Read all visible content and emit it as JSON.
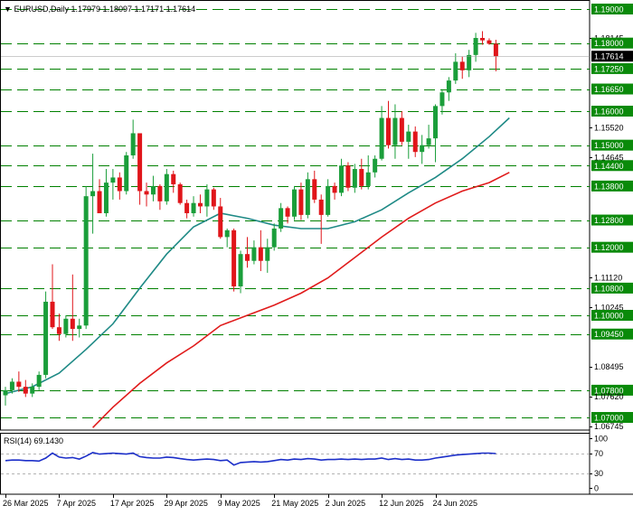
{
  "header": {
    "menu_arrow": "▼",
    "symbol": "EURUSD,Daily",
    "ohlc": "1.17979 1.18097 1.17171 1.17614"
  },
  "rsi_header": "RSI(14) 69.1430",
  "colors": {
    "bull": "#1a9e3a",
    "bear": "#e0151a",
    "level_line": "#008000",
    "level_tag": "#0a8a0a",
    "ma_fast": "#1f8a86",
    "ma_slow": "#e01b1b",
    "rsi_line": "#1c2fc9",
    "price_tag": "#000000"
  },
  "chart_data": [
    {
      "type": "candlestick",
      "title": "EURUSD,Daily",
      "ylim": [
        1.067,
        1.1935
      ],
      "y_ticks": [
        "1.19000",
        "1.18145",
        "1.18000",
        "1.17614",
        "1.17250",
        "1.16650",
        "1.16000",
        "1.15520",
        "1.15000",
        "1.14645",
        "1.14400",
        "1.13800",
        "1.12800",
        "1.12000",
        "1.11120",
        "1.10800",
        "1.10245",
        "1.10000",
        "1.09450",
        "1.08495",
        "1.07800",
        "1.07620",
        "1.07000",
        "1.06745"
      ],
      "levels": [
        1.19,
        1.18,
        1.1725,
        1.1665,
        1.16,
        1.15,
        1.144,
        1.138,
        1.128,
        1.12,
        1.108,
        1.1,
        1.0945,
        1.078,
        1.07
      ],
      "last_price": 1.17614,
      "x_labels": [
        {
          "label": "26 Mar 2025",
          "index": 0
        },
        {
          "label": "7 Apr 2025",
          "index": 8
        },
        {
          "label": "17 Apr 2025",
          "index": 16
        },
        {
          "label": "29 Apr 2025",
          "index": 24
        },
        {
          "label": "9 May 2025",
          "index": 32
        },
        {
          "label": "21 May 2025",
          "index": 40
        },
        {
          "label": "2 Jun 2025",
          "index": 48
        },
        {
          "label": "12 Jun 2025",
          "index": 56
        },
        {
          "label": "24 Jun 2025",
          "index": 64
        }
      ],
      "candles": [
        [
          1.0765,
          1.079,
          1.0735,
          1.078
        ],
        [
          1.078,
          1.0815,
          1.077,
          1.0805
        ],
        [
          1.0805,
          1.0835,
          1.0775,
          1.079
        ],
        [
          1.079,
          1.081,
          1.076,
          1.077
        ],
        [
          1.077,
          1.08,
          1.076,
          1.079
        ],
        [
          1.079,
          1.0835,
          1.078,
          1.0825
        ],
        [
          1.0825,
          1.107,
          1.0815,
          1.104
        ],
        [
          1.104,
          1.115,
          1.096,
          1.0965
        ],
        [
          1.0965,
          1.1005,
          1.0925,
          1.0945
        ],
        [
          1.0945,
          1.1,
          1.0935,
          1.099
        ],
        [
          1.099,
          1.112,
          1.0925,
          1.096
        ],
        [
          1.096,
          1.099,
          1.0935,
          1.097
        ],
        [
          1.097,
          1.138,
          1.096,
          1.135
        ],
        [
          1.135,
          1.1475,
          1.124,
          1.1365
        ],
        [
          1.1365,
          1.14,
          1.13,
          1.13
        ],
        [
          1.13,
          1.143,
          1.129,
          1.139
        ],
        [
          1.139,
          1.143,
          1.134,
          1.1405
        ],
        [
          1.1405,
          1.142,
          1.134,
          1.1365
        ],
        [
          1.1365,
          1.148,
          1.1355,
          1.147
        ],
        [
          1.147,
          1.1575,
          1.146,
          1.1535
        ],
        [
          1.1535,
          1.1535,
          1.1325,
          1.1365
        ],
        [
          1.1365,
          1.139,
          1.132,
          1.1355
        ],
        [
          1.1355,
          1.141,
          1.1335,
          1.138
        ],
        [
          1.138,
          1.1385,
          1.131,
          1.1335
        ],
        [
          1.1335,
          1.143,
          1.1325,
          1.1415
        ],
        [
          1.1415,
          1.1425,
          1.136,
          1.1385
        ],
        [
          1.1385,
          1.139,
          1.1325,
          1.133
        ],
        [
          1.133,
          1.134,
          1.1285,
          1.13
        ],
        [
          1.13,
          1.135,
          1.129,
          1.133
        ],
        [
          1.133,
          1.1355,
          1.13,
          1.132
        ],
        [
          1.132,
          1.1385,
          1.129,
          1.137
        ],
        [
          1.137,
          1.1375,
          1.131,
          1.132
        ],
        [
          1.132,
          1.1345,
          1.1225,
          1.123
        ],
        [
          1.123,
          1.1255,
          1.12,
          1.125
        ],
        [
          1.125,
          1.1255,
          1.107,
          1.1085
        ],
        [
          1.1085,
          1.119,
          1.1065,
          1.118
        ],
        [
          1.118,
          1.123,
          1.114,
          1.116
        ],
        [
          1.116,
          1.122,
          1.115,
          1.12
        ],
        [
          1.12,
          1.125,
          1.113,
          1.116
        ],
        [
          1.116,
          1.1225,
          1.1125,
          1.12
        ],
        [
          1.12,
          1.127,
          1.119,
          1.1255
        ],
        [
          1.1255,
          1.133,
          1.1245,
          1.1315
        ],
        [
          1.1315,
          1.132,
          1.127,
          1.129
        ],
        [
          1.129,
          1.138,
          1.128,
          1.137
        ],
        [
          1.137,
          1.139,
          1.128,
          1.1295
        ],
        [
          1.1295,
          1.142,
          1.1285,
          1.14
        ],
        [
          1.14,
          1.1425,
          1.133,
          1.134
        ],
        [
          1.134,
          1.1355,
          1.121,
          1.1295
        ],
        [
          1.1295,
          1.14,
          1.129,
          1.138
        ],
        [
          1.138,
          1.139,
          1.134,
          1.136
        ],
        [
          1.136,
          1.146,
          1.135,
          1.144
        ],
        [
          1.144,
          1.145,
          1.1365,
          1.1375
        ],
        [
          1.1375,
          1.1445,
          1.136,
          1.143
        ],
        [
          1.143,
          1.146,
          1.137,
          1.138
        ],
        [
          1.138,
          1.147,
          1.137,
          1.142
        ],
        [
          1.142,
          1.147,
          1.1405,
          1.146
        ],
        [
          1.146,
          1.1615,
          1.1455,
          1.158
        ],
        [
          1.158,
          1.163,
          1.149,
          1.15
        ],
        [
          1.15,
          1.162,
          1.146,
          1.158
        ],
        [
          1.158,
          1.16,
          1.15,
          1.151
        ],
        [
          1.151,
          1.156,
          1.146,
          1.154
        ],
        [
          1.154,
          1.1555,
          1.1465,
          1.148
        ],
        [
          1.148,
          1.153,
          1.1445,
          1.15
        ],
        [
          1.15,
          1.156,
          1.149,
          1.152
        ],
        [
          1.152,
          1.162,
          1.145,
          1.1615
        ],
        [
          1.1615,
          1.1665,
          1.159,
          1.1655
        ],
        [
          1.1655,
          1.17,
          1.163,
          1.169
        ],
        [
          1.169,
          1.177,
          1.168,
          1.1745
        ],
        [
          1.1745,
          1.176,
          1.1695,
          1.172
        ],
        [
          1.172,
          1.178,
          1.17,
          1.1765
        ],
        [
          1.1765,
          1.183,
          1.1745,
          1.1815
        ],
        [
          1.1815,
          1.1835,
          1.1795,
          1.1808
        ],
        [
          1.1808,
          1.1814,
          1.1795,
          1.1798
        ],
        [
          1.17979,
          1.18097,
          1.17171,
          1.17614
        ]
      ],
      "ma_fast": [
        [
          0,
          1.077
        ],
        [
          4,
          1.079
        ],
        [
          8,
          1.083
        ],
        [
          12,
          1.09
        ],
        [
          16,
          1.0975
        ],
        [
          20,
          1.108
        ],
        [
          24,
          1.118
        ],
        [
          28,
          1.126
        ],
        [
          32,
          1.13
        ],
        [
          36,
          1.1285
        ],
        [
          40,
          1.1265
        ],
        [
          44,
          1.1255
        ],
        [
          48,
          1.1255
        ],
        [
          52,
          1.1275
        ],
        [
          56,
          1.131
        ],
        [
          60,
          1.136
        ],
        [
          64,
          1.1405
        ],
        [
          68,
          1.146
        ],
        [
          72,
          1.1525
        ],
        [
          75,
          1.158
        ]
      ],
      "ma_slow": [
        [
          13,
          1.067
        ],
        [
          16,
          1.073
        ],
        [
          20,
          1.08
        ],
        [
          24,
          1.086
        ],
        [
          28,
          1.091
        ],
        [
          32,
          1.097
        ],
        [
          36,
          1.1
        ],
        [
          40,
          1.103
        ],
        [
          44,
          1.1065
        ],
        [
          48,
          1.111
        ],
        [
          52,
          1.117
        ],
        [
          56,
          1.123
        ],
        [
          60,
          1.1285
        ],
        [
          64,
          1.133
        ],
        [
          68,
          1.1365
        ],
        [
          72,
          1.139
        ],
        [
          75,
          1.142
        ]
      ]
    },
    {
      "type": "line",
      "title": "RSI(14) 69.1430",
      "ylim": [
        0,
        100
      ],
      "y_ticks": [
        100,
        70,
        30,
        0
      ],
      "levels": [
        70,
        30
      ],
      "values": [
        55,
        56,
        56,
        55,
        55,
        54,
        60,
        70,
        62,
        60,
        61,
        58,
        64,
        71,
        68,
        69,
        70,
        69,
        68,
        70,
        63,
        61,
        60,
        60,
        62,
        61,
        59,
        57,
        56,
        57,
        58,
        57,
        55,
        56,
        46,
        51,
        52,
        53,
        52,
        53,
        55,
        57,
        56,
        58,
        57,
        59,
        58,
        56,
        57,
        57,
        58,
        57,
        58,
        57,
        58,
        58,
        60,
        57,
        59,
        57,
        58,
        56,
        56,
        57,
        60,
        62,
        64,
        66,
        67,
        68,
        69,
        70,
        70,
        69.143
      ]
    }
  ]
}
